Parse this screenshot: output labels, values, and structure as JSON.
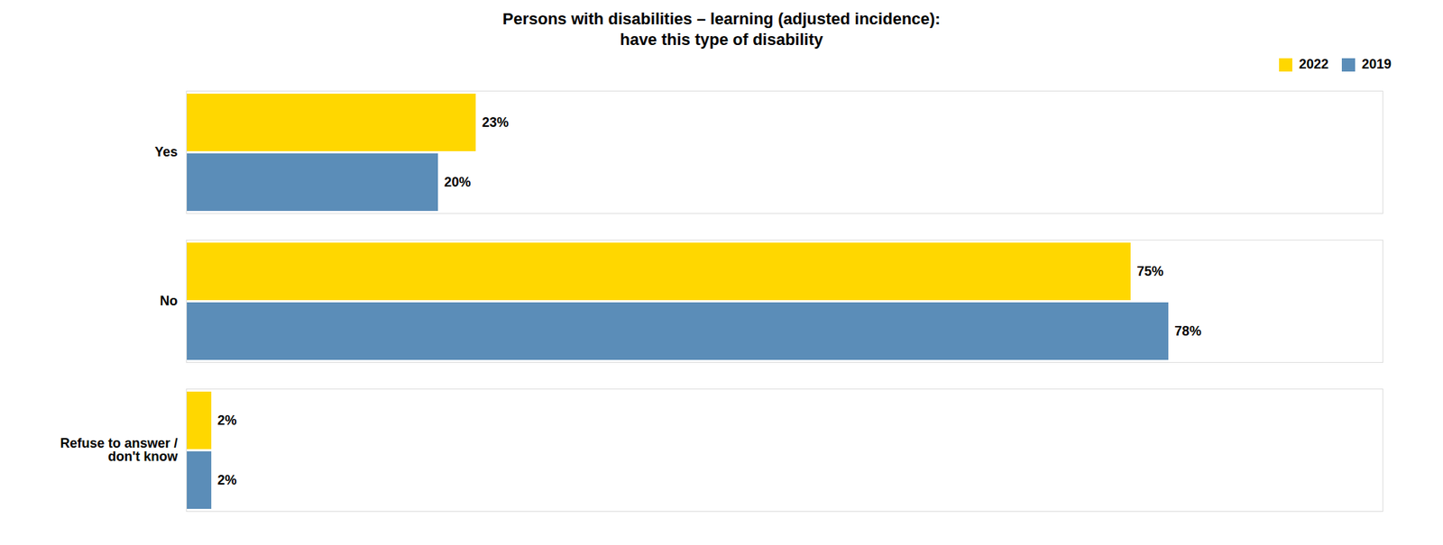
{
  "chart_data": {
    "type": "bar",
    "orientation": "horizontal",
    "title": "Persons with disabilities – learning (adjusted incidence):\nhave this type of disability",
    "categories": [
      "Yes",
      "No",
      "Refuse to answer /\ndon't know"
    ],
    "series": [
      {
        "name": "2022",
        "color": "#FFD700",
        "values": [
          23,
          75,
          2
        ],
        "value_labels": [
          "23%",
          "75%",
          "2%"
        ]
      },
      {
        "name": "2019",
        "color": "#5B8DB8",
        "values": [
          20,
          78,
          2
        ],
        "value_labels": [
          "20%",
          "78%",
          "2%"
        ]
      }
    ],
    "xlim": [
      0,
      95
    ],
    "tick_labels": "y",
    "grid": false,
    "legend": "upper right",
    "data_labels": true
  }
}
